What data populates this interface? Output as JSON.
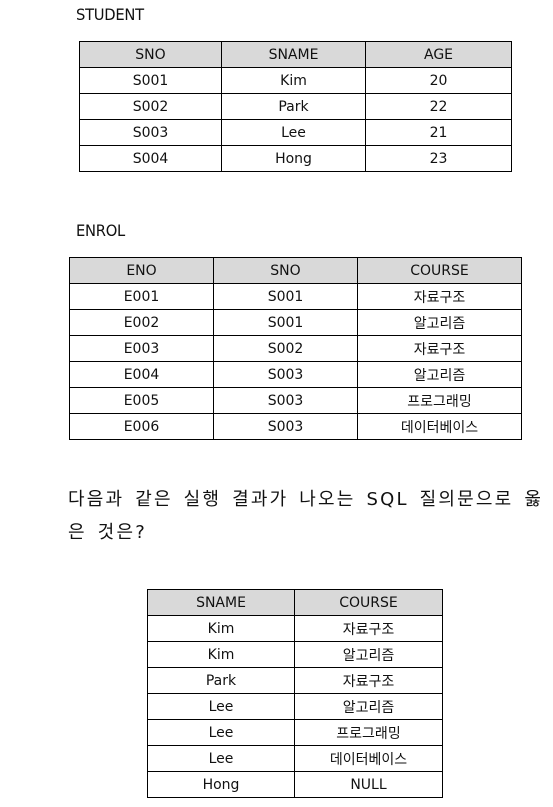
{
  "student": {
    "title": "STUDENT",
    "headers": [
      "SNO",
      "SNAME",
      "AGE"
    ],
    "rows": [
      [
        "S001",
        "Kim",
        "20"
      ],
      [
        "S002",
        "Park",
        "22"
      ],
      [
        "S003",
        "Lee",
        "21"
      ],
      [
        "S004",
        "Hong",
        "23"
      ]
    ]
  },
  "enrol": {
    "title": "ENROL",
    "headers": [
      "ENO",
      "SNO",
      "COURSE"
    ],
    "rows": [
      [
        "E001",
        "S001",
        "자료구조"
      ],
      [
        "E002",
        "S001",
        "알고리즘"
      ],
      [
        "E003",
        "S002",
        "자료구조"
      ],
      [
        "E004",
        "S003",
        "알고리즘"
      ],
      [
        "E005",
        "S003",
        "프로그래밍"
      ],
      [
        "E006",
        "S003",
        "데이터베이스"
      ]
    ]
  },
  "question": {
    "text": "다음과 같은 실행 결과가 나오는 SQL 질의문으로 옳은 것은?"
  },
  "result": {
    "headers": [
      "SNAME",
      "COURSE"
    ],
    "rows": [
      [
        "Kim",
        "자료구조"
      ],
      [
        "Kim",
        "알고리즘"
      ],
      [
        "Park",
        "자료구조"
      ],
      [
        "Lee",
        "알고리즘"
      ],
      [
        "Lee",
        "프로그래밍"
      ],
      [
        "Lee",
        "데이터베이스"
      ],
      [
        "Hong",
        "NULL"
      ]
    ]
  }
}
